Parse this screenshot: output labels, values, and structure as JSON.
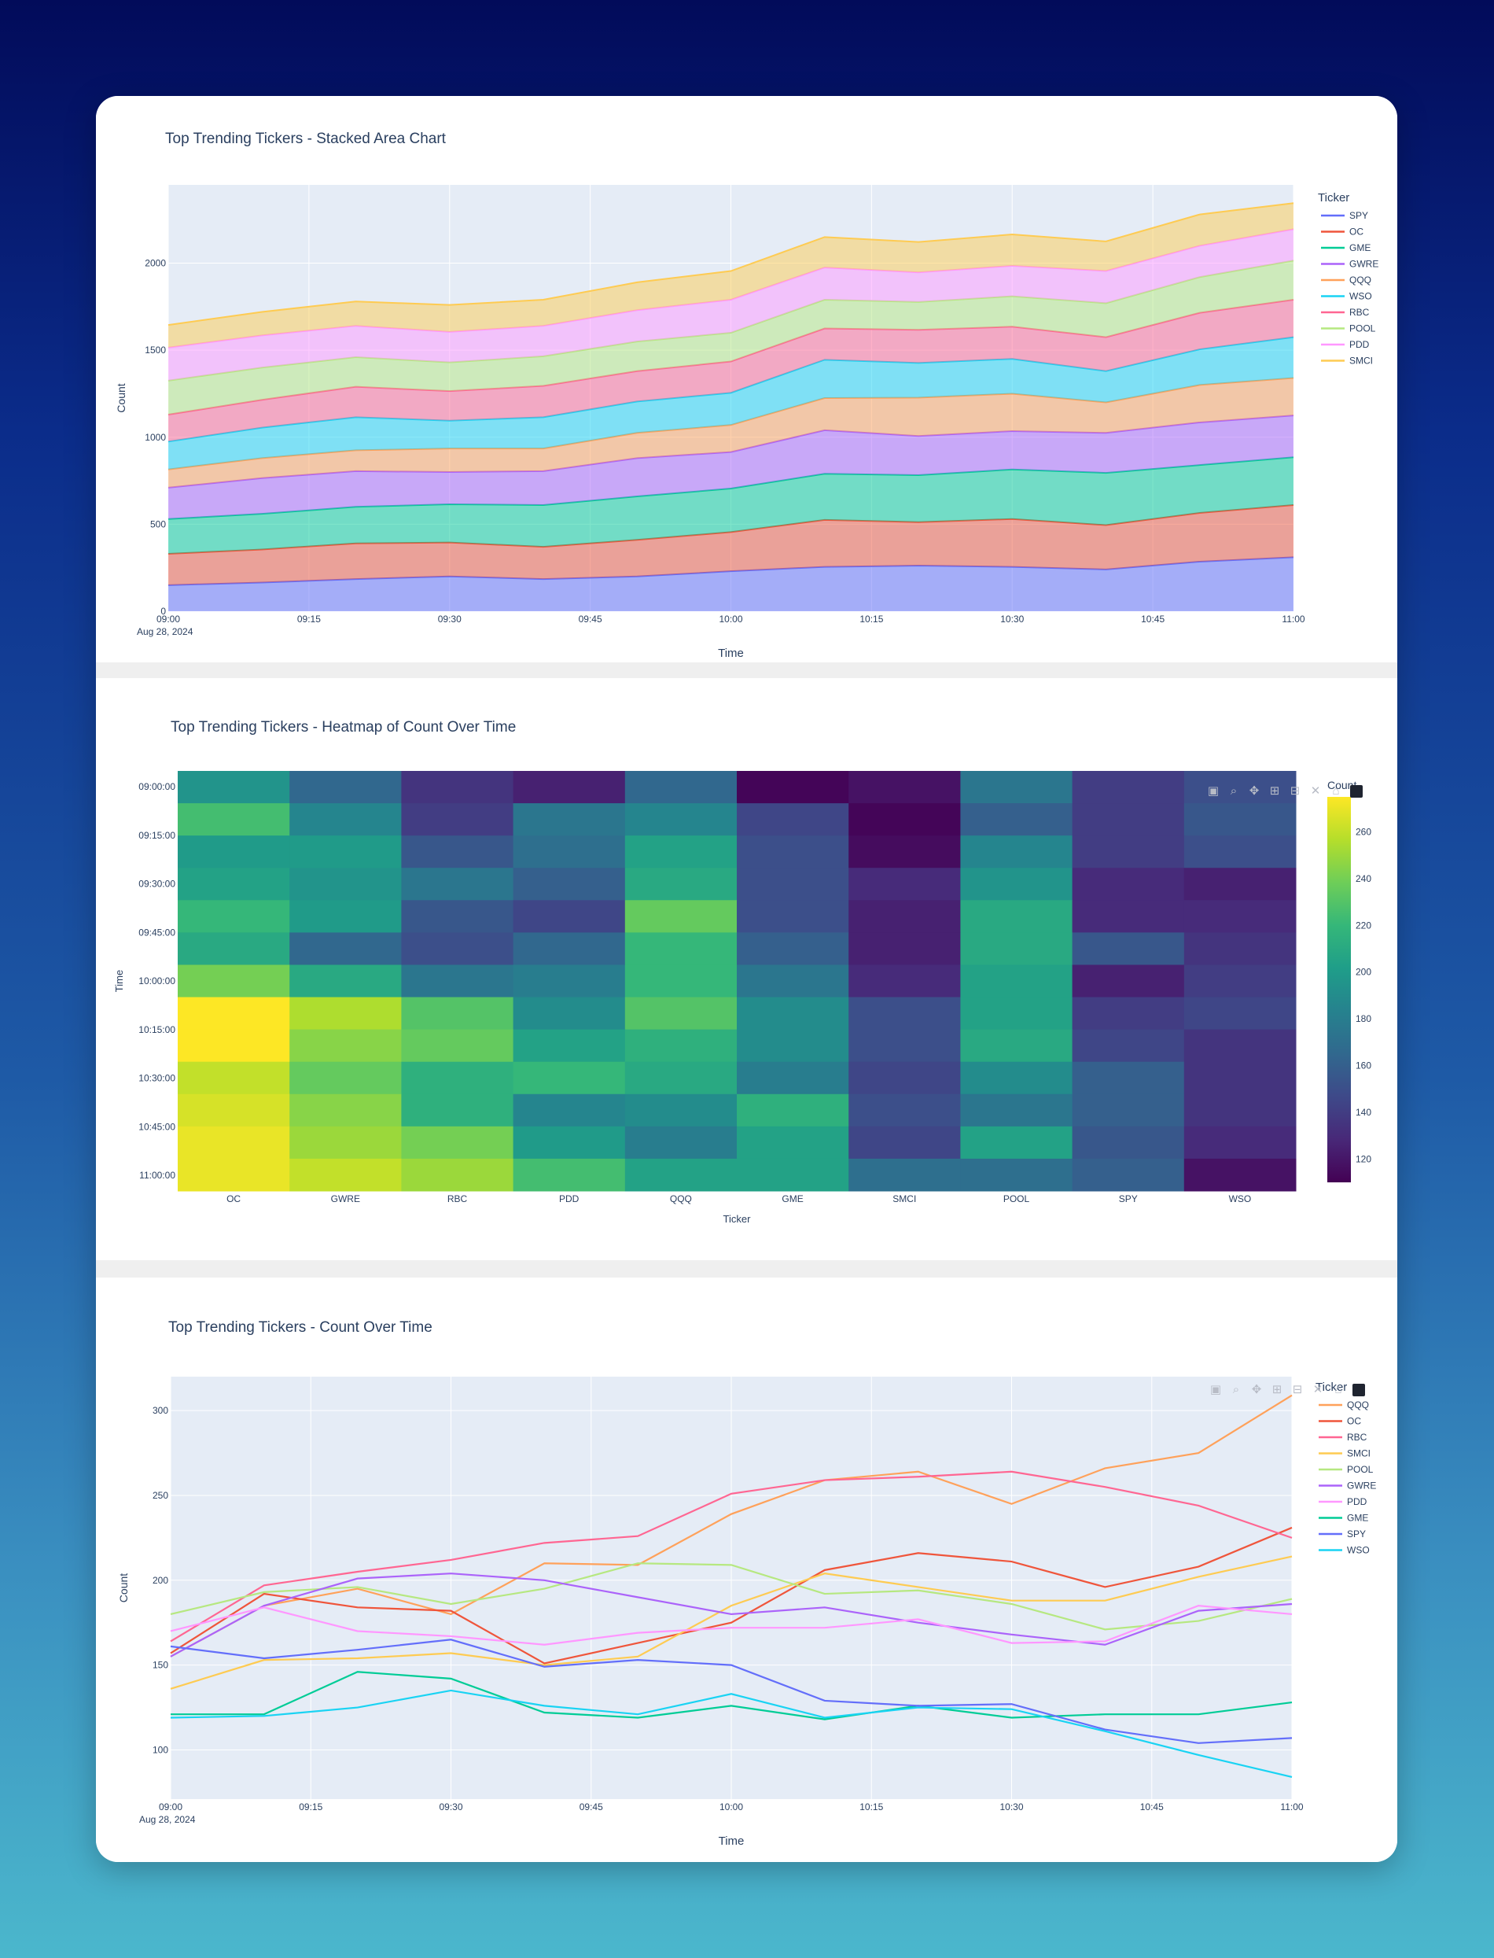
{
  "colors": {
    "SPY": "#636efa",
    "OC": "#ef553b",
    "GME": "#00cc96",
    "GWRE": "#ab63fa",
    "QQQ": "#ffa15a",
    "WSO": "#19d3f3",
    "RBC": "#ff6692",
    "POOL": "#b6e880",
    "PDD": "#ff97ff",
    "SMCI": "#fecb52",
    "plot_bg": "#e5ecf6",
    "grid": "#ffffff",
    "text": "#2a3f5f"
  },
  "modebar_icons": [
    "camera-icon",
    "zoom-icon",
    "pan-icon",
    "zoom-in-icon",
    "zoom-out-icon",
    "autoscale-icon",
    "home-icon",
    "plotly-logo-icon"
  ],
  "chart_data": [
    {
      "id": "area",
      "type": "area",
      "title": "Top Trending Tickers - Stacked Area Chart",
      "xlabel": "Time",
      "ylabel": "Count",
      "x": [
        "09:00",
        "09:10",
        "09:20",
        "09:30",
        "09:40",
        "09:50",
        "10:00",
        "10:10",
        "10:20",
        "10:30",
        "10:40",
        "10:50",
        "11:00"
      ],
      "x_ticks": [
        "09:00",
        "09:15",
        "09:30",
        "09:45",
        "10:00",
        "10:15",
        "10:30",
        "10:45",
        "11:00"
      ],
      "x_date_label": "Aug 28, 2024",
      "y_ticks": [
        0,
        500,
        1000,
        1500,
        2000
      ],
      "ylim": [
        0,
        2450
      ],
      "legend_title": "Ticker",
      "series": [
        {
          "name": "SPY",
          "values": [
            150,
            165,
            185,
            200,
            185,
            200,
            230,
            255,
            262,
            255,
            240,
            285,
            310
          ]
        },
        {
          "name": "OC",
          "values": [
            180,
            190,
            205,
            195,
            185,
            210,
            225,
            270,
            250,
            275,
            255,
            280,
            300
          ]
        },
        {
          "name": "GME",
          "values": [
            200,
            205,
            210,
            220,
            240,
            250,
            250,
            265,
            270,
            285,
            300,
            275,
            275
          ]
        },
        {
          "name": "GWRE",
          "values": [
            180,
            205,
            205,
            185,
            195,
            220,
            210,
            250,
            225,
            220,
            230,
            245,
            240
          ]
        },
        {
          "name": "QQQ",
          "values": [
            105,
            115,
            120,
            135,
            130,
            145,
            155,
            185,
            220,
            215,
            175,
            215,
            215
          ]
        },
        {
          "name": "WSO",
          "values": [
            160,
            175,
            190,
            160,
            180,
            180,
            185,
            220,
            200,
            200,
            180,
            205,
            235
          ]
        },
        {
          "name": "RBC",
          "values": [
            155,
            160,
            175,
            170,
            180,
            175,
            180,
            180,
            190,
            185,
            195,
            210,
            215
          ]
        },
        {
          "name": "POOL",
          "values": [
            195,
            185,
            170,
            165,
            170,
            170,
            165,
            165,
            160,
            175,
            195,
            205,
            225
          ]
        },
        {
          "name": "PDD",
          "values": [
            190,
            185,
            180,
            175,
            175,
            180,
            190,
            185,
            170,
            175,
            185,
            180,
            180
          ]
        },
        {
          "name": "SMCI",
          "values": [
            130,
            135,
            140,
            155,
            150,
            160,
            165,
            175,
            175,
            180,
            170,
            180,
            150
          ]
        }
      ]
    },
    {
      "id": "heatmap",
      "type": "heatmap",
      "title": "Top Trending Tickers - Heatmap of Count Over Time",
      "xlabel": "Ticker",
      "ylabel": "Time",
      "categories": [
        "OC",
        "GWRE",
        "RBC",
        "PDD",
        "QQQ",
        "GME",
        "SMCI",
        "POOL",
        "SPY",
        "WSO"
      ],
      "y_ticks": [
        "09:00:00",
        "09:15:00",
        "09:30:00",
        "09:45:00",
        "10:00:00",
        "10:15:00",
        "10:30:00",
        "10:45:00",
        "11:00:00"
      ],
      "colorbar_title": "Count",
      "colorbar_ticks": [
        120,
        140,
        160,
        180,
        200,
        220,
        240,
        260
      ],
      "zlim": [
        110,
        275
      ],
      "z": [
        [
          195,
          165,
          135,
          125,
          165,
          112,
          118,
          175,
          140,
          150
        ],
        [
          225,
          185,
          140,
          175,
          185,
          145,
          112,
          160,
          140,
          155
        ],
        [
          200,
          200,
          155,
          170,
          205,
          150,
          115,
          185,
          140,
          150
        ],
        [
          205,
          195,
          175,
          160,
          210,
          150,
          130,
          195,
          130,
          125
        ],
        [
          220,
          200,
          155,
          145,
          235,
          150,
          125,
          210,
          130,
          130
        ],
        [
          210,
          165,
          150,
          165,
          220,
          160,
          125,
          210,
          155,
          135
        ],
        [
          240,
          210,
          175,
          180,
          220,
          175,
          130,
          205,
          125,
          140
        ],
        [
          275,
          255,
          230,
          190,
          230,
          190,
          150,
          205,
          140,
          145
        ],
        [
          275,
          245,
          235,
          205,
          215,
          190,
          150,
          210,
          145,
          135
        ],
        [
          260,
          235,
          215,
          220,
          210,
          180,
          145,
          190,
          160,
          135
        ],
        [
          265,
          245,
          215,
          185,
          190,
          215,
          150,
          175,
          160,
          135
        ],
        [
          270,
          250,
          240,
          200,
          180,
          205,
          145,
          205,
          155,
          130
        ],
        [
          270,
          260,
          250,
          225,
          205,
          205,
          170,
          170,
          160,
          118
        ]
      ]
    },
    {
      "id": "line",
      "type": "line",
      "title": "Top Trending Tickers - Count Over Time",
      "xlabel": "Time",
      "ylabel": "Count",
      "x": [
        "09:00",
        "09:10",
        "09:20",
        "09:30",
        "09:40",
        "09:50",
        "10:00",
        "10:10",
        "10:20",
        "10:30",
        "10:40",
        "10:50",
        "11:00"
      ],
      "x_ticks": [
        "09:00",
        "09:15",
        "09:30",
        "09:45",
        "10:00",
        "10:15",
        "10:30",
        "10:45",
        "11:00"
      ],
      "x_date_label": "Aug 28, 2024",
      "y_ticks": [
        100,
        150,
        200,
        250,
        300
      ],
      "ylim": [
        71,
        320
      ],
      "legend_title": "Ticker",
      "series": [
        {
          "name": "QQQ",
          "values": [
            155,
            185,
            195,
            180,
            210,
            209,
            239,
            259,
            264,
            245,
            266,
            275,
            309
          ]
        },
        {
          "name": "OC",
          "values": [
            157,
            192,
            184,
            182,
            151,
            163,
            175,
            206,
            216,
            211,
            196,
            208,
            231
          ]
        },
        {
          "name": "RBC",
          "values": [
            164,
            197,
            205,
            212,
            222,
            226,
            251,
            259,
            261,
            264,
            255,
            244,
            225
          ]
        },
        {
          "name": "SMCI",
          "values": [
            136,
            153,
            154,
            157,
            150,
            155,
            185,
            204,
            196,
            188,
            188,
            202,
            214
          ]
        },
        {
          "name": "POOL",
          "values": [
            180,
            193,
            196,
            186,
            195,
            210,
            209,
            192,
            194,
            186,
            171,
            176,
            189
          ]
        },
        {
          "name": "GWRE",
          "values": [
            155,
            185,
            201,
            204,
            200,
            190,
            180,
            184,
            175,
            168,
            162,
            182,
            186
          ]
        },
        {
          "name": "PDD",
          "values": [
            170,
            184,
            170,
            167,
            162,
            169,
            172,
            172,
            177,
            163,
            164,
            185,
            180
          ]
        },
        {
          "name": "GME",
          "values": [
            121,
            121,
            146,
            142,
            122,
            119,
            126,
            118,
            126,
            119,
            121,
            121,
            128
          ]
        },
        {
          "name": "SPY",
          "values": [
            161,
            154,
            159,
            165,
            149,
            153,
            150,
            129,
            126,
            127,
            112,
            104,
            107
          ]
        },
        {
          "name": "WSO",
          "values": [
            119,
            120,
            125,
            135,
            126,
            121,
            133,
            119,
            125,
            124,
            111,
            97,
            84
          ]
        }
      ]
    }
  ]
}
